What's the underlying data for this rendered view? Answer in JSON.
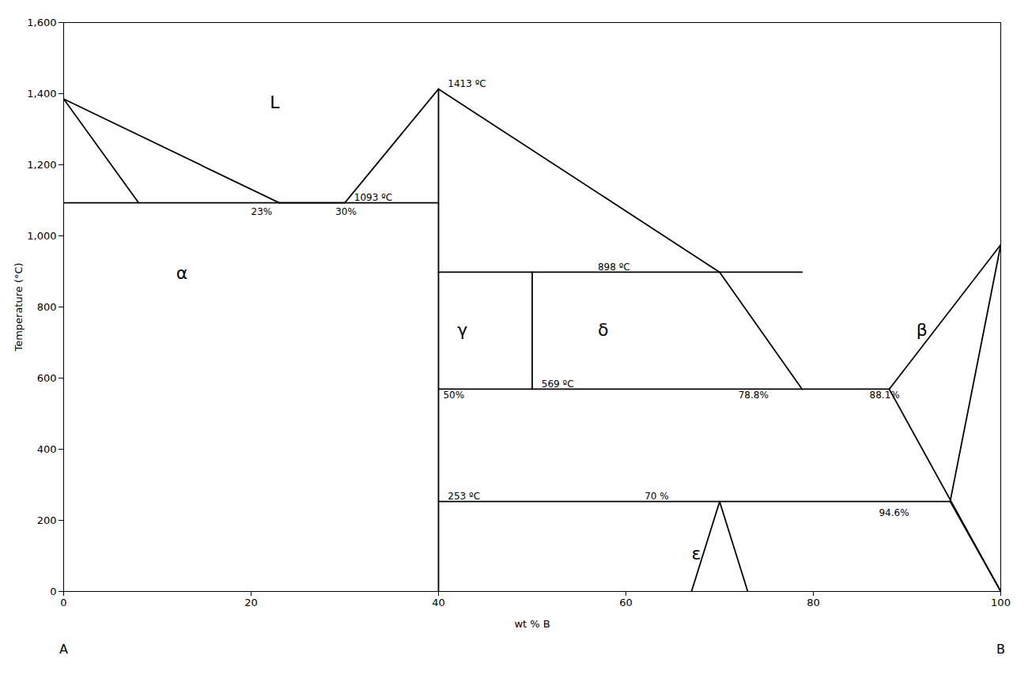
{
  "chart_data": {
    "type": "line",
    "xlabel": "wt % B",
    "ylabel": "Temperature (°C)",
    "xlim": [
      0,
      100
    ],
    "ylim": [
      0,
      1600
    ],
    "xticks": [
      0,
      20,
      40,
      60,
      80,
      100
    ],
    "yticks": [
      0,
      200,
      400,
      600,
      800,
      1000,
      1200,
      1400,
      1600
    ],
    "color": "#000000",
    "series": [
      {
        "x": [
          0,
          23
        ],
        "values": [
          1385,
          1093
        ]
      },
      {
        "x": [
          0,
          8
        ],
        "values": [
          1385,
          1093
        ]
      },
      {
        "x": [
          0,
          40
        ],
        "values": [
          1093,
          1093
        ]
      },
      {
        "x": [
          23,
          30
        ],
        "values": [
          1093,
          1093
        ]
      },
      {
        "x": [
          30,
          40
        ],
        "values": [
          1093,
          1413
        ]
      },
      {
        "x": [
          40,
          70
        ],
        "values": [
          1413,
          898
        ]
      },
      {
        "x": [
          40,
          40
        ],
        "values": [
          1413,
          0
        ]
      },
      {
        "x": [
          40,
          78.8
        ],
        "values": [
          898,
          898
        ]
      },
      {
        "x": [
          50,
          50
        ],
        "values": [
          898,
          569
        ]
      },
      {
        "x": [
          40,
          78.8
        ],
        "values": [
          569,
          569
        ]
      },
      {
        "x": [
          70,
          78.8
        ],
        "values": [
          898,
          569
        ]
      },
      {
        "x": [
          78.8,
          88.1
        ],
        "values": [
          569,
          569
        ]
      },
      {
        "x": [
          88.1,
          100
        ],
        "values": [
          569,
          975
        ]
      },
      {
        "x": [
          88.1,
          100
        ],
        "values": [
          569,
          0
        ]
      },
      {
        "x": [
          40,
          94.6
        ],
        "values": [
          253,
          253
        ]
      },
      {
        "x": [
          94.6,
          100
        ],
        "values": [
          253,
          975
        ]
      },
      {
        "x": [
          94.6,
          100
        ],
        "values": [
          253,
          0
        ]
      },
      {
        "x": [
          67,
          70
        ],
        "values": [
          0,
          253
        ]
      },
      {
        "x": [
          70,
          73
        ],
        "values": [
          253,
          0
        ]
      }
    ],
    "annotations": [
      {
        "text": "L",
        "x": 22,
        "y": 1360
      },
      {
        "text": "α",
        "x": 12,
        "y": 880
      },
      {
        "text": "γ",
        "x": 42,
        "y": 720
      },
      {
        "text": "δ",
        "x": 57,
        "y": 720
      },
      {
        "text": "β",
        "x": 91,
        "y": 720
      },
      {
        "text": "ε",
        "x": 67,
        "y": 90
      },
      {
        "text": "1413 ºC",
        "x": 41,
        "y": 1420
      },
      {
        "text": "1093 ºC",
        "x": 31,
        "y": 1098
      },
      {
        "text": "898 ºC",
        "x": 57,
        "y": 903
      },
      {
        "text": "569 ºC",
        "x": 51,
        "y": 574
      },
      {
        "text": "253 ºC",
        "x": 41,
        "y": 258
      },
      {
        "text": "23%",
        "x": 20,
        "y": 1060
      },
      {
        "text": "30%",
        "x": 29,
        "y": 1060
      },
      {
        "text": "50%",
        "x": 40.5,
        "y": 544
      },
      {
        "text": "78.8%",
        "x": 72,
        "y": 544
      },
      {
        "text": "88.1%",
        "x": 86,
        "y": 544
      },
      {
        "text": "70 %",
        "x": 62,
        "y": 258
      },
      {
        "text": "94.6%",
        "x": 87,
        "y": 213
      },
      {
        "text": "A",
        "x": 0,
        "y": -175
      },
      {
        "text": "B",
        "x": 100,
        "y": -175
      }
    ]
  }
}
